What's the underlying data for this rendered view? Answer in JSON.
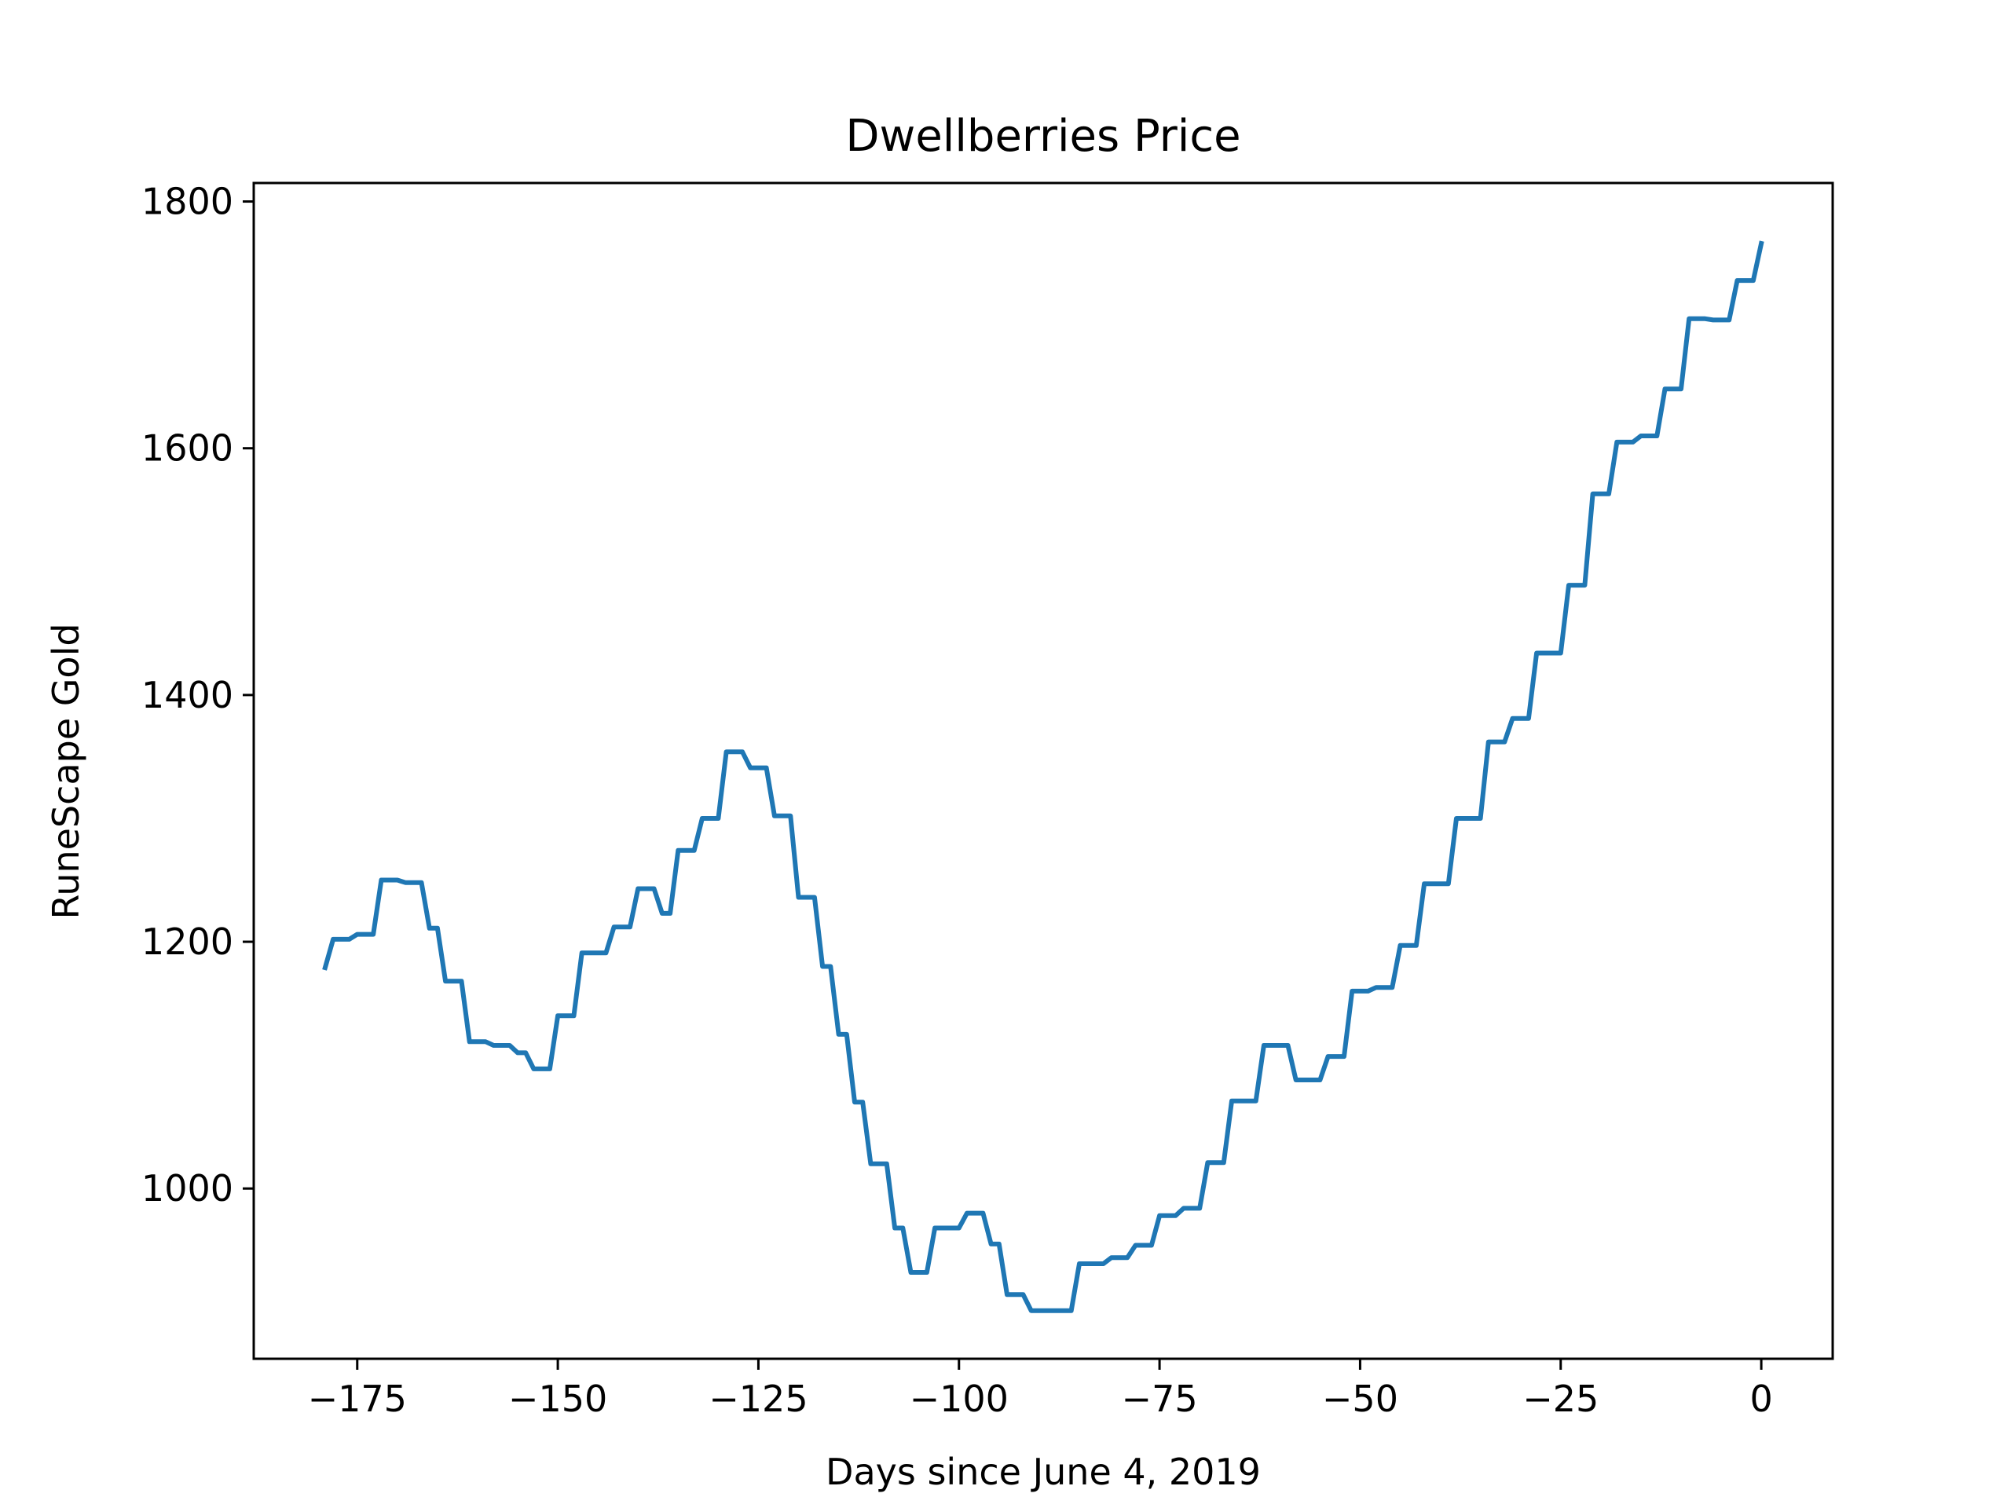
{
  "chart_data": {
    "type": "line",
    "title": "Dwellberries Price",
    "xlabel": "Days since June 4, 2019",
    "ylabel": "RuneScape Gold",
    "xlim": [
      -187.9,
      8.9
    ],
    "ylim": [
      862,
      1815
    ],
    "xticks": [
      -175,
      -150,
      -125,
      -100,
      -75,
      -50,
      -25,
      0
    ],
    "xtick_labels": [
      "−175",
      "−150",
      "−125",
      "−100",
      "−75",
      "−50",
      "−25",
      "0"
    ],
    "yticks": [
      1000,
      1200,
      1400,
      1600,
      1800
    ],
    "ytick_labels": [
      "1000",
      "1200",
      "1400",
      "1600",
      "1800"
    ],
    "grid": false,
    "colors": {
      "line": "#1f77b4",
      "axes": "#000000"
    },
    "series": [
      {
        "x": [
          -179,
          -178,
          -177,
          -176,
          -175,
          -174,
          -173,
          -172,
          -171,
          -170,
          -169,
          -168,
          -167,
          -166,
          -165,
          -164,
          -163,
          -162,
          -161,
          -160,
          -159,
          -158,
          -157,
          -156,
          -155,
          -154,
          -153,
          -152,
          -151,
          -150,
          -149,
          -148,
          -147,
          -146,
          -145,
          -144,
          -143,
          -142,
          -141,
          -140,
          -139,
          -138,
          -137,
          -136,
          -135,
          -134,
          -133,
          -132,
          -131,
          -130,
          -129,
          -128,
          -127,
          -126,
          -125,
          -124,
          -123,
          -122,
          -121,
          -120,
          -119,
          -118,
          -117,
          -116,
          -115,
          -114,
          -113,
          -112,
          -111,
          -110,
          -109,
          -108,
          -107,
          -106,
          -105,
          -104,
          -103,
          -102,
          -101,
          -100,
          -99,
          -98,
          -97,
          -96,
          -95,
          -94,
          -93,
          -92,
          -91,
          -90,
          -89,
          -88,
          -87,
          -86,
          -85,
          -84,
          -83,
          -82,
          -81,
          -80,
          -79,
          -78,
          -77,
          -76,
          -75,
          -74,
          -73,
          -72,
          -71,
          -70,
          -69,
          -68,
          -67,
          -66,
          -65,
          -64,
          -63,
          -62,
          -61,
          -60,
          -59,
          -58,
          -57,
          -56,
          -55,
          -54,
          -53,
          -52,
          -51,
          -50,
          -49,
          -48,
          -47,
          -46,
          -45,
          -44,
          -43,
          -42,
          -41,
          -40,
          -39,
          -38,
          -37,
          -36,
          -35,
          -34,
          -33,
          -32,
          -31,
          -30,
          -29,
          -28,
          -27,
          -26,
          -25,
          -24,
          -23,
          -22,
          -21,
          -20,
          -19,
          -18,
          -17,
          -16,
          -15,
          -14,
          -13,
          -12,
          -11,
          -10,
          -9,
          -8,
          -7,
          -6,
          -5,
          -4,
          -3,
          -2,
          -1,
          0
        ],
        "y": [
          1179,
          1202,
          1202,
          1202,
          1206,
          1206,
          1206,
          1250,
          1250,
          1250,
          1248,
          1248,
          1248,
          1211,
          1211,
          1168,
          1168,
          1168,
          1119,
          1119,
          1119,
          1116,
          1116,
          1116,
          1110,
          1110,
          1097,
          1097,
          1097,
          1140,
          1140,
          1140,
          1191,
          1191,
          1191,
          1191,
          1212,
          1212,
          1212,
          1243,
          1243,
          1243,
          1223,
          1223,
          1274,
          1274,
          1274,
          1300,
          1300,
          1300,
          1354,
          1354,
          1354,
          1341,
          1341,
          1341,
          1302,
          1302,
          1302,
          1236,
          1236,
          1236,
          1180,
          1180,
          1125,
          1125,
          1070,
          1070,
          1020,
          1020,
          1020,
          968,
          968,
          932,
          932,
          932,
          968,
          968,
          968,
          968,
          980,
          980,
          980,
          955,
          955,
          914,
          914,
          914,
          901,
          901,
          901,
          901,
          901,
          901,
          939,
          939,
          939,
          939,
          944,
          944,
          944,
          954,
          954,
          954,
          978,
          978,
          978,
          984,
          984,
          984,
          1021,
          1021,
          1021,
          1071,
          1071,
          1071,
          1071,
          1116,
          1116,
          1116,
          1116,
          1088,
          1088,
          1088,
          1088,
          1107,
          1107,
          1107,
          1160,
          1160,
          1160,
          1163,
          1163,
          1163,
          1197,
          1197,
          1197,
          1247,
          1247,
          1247,
          1247,
          1300,
          1300,
          1300,
          1300,
          1362,
          1362,
          1362,
          1381,
          1381,
          1381,
          1434,
          1434,
          1434,
          1434,
          1489,
          1489,
          1489,
          1563,
          1563,
          1563,
          1605,
          1605,
          1605,
          1610,
          1610,
          1610,
          1648,
          1648,
          1648,
          1705,
          1705,
          1705,
          1704,
          1704,
          1704,
          1736,
          1736,
          1736,
          1766
        ]
      }
    ]
  }
}
